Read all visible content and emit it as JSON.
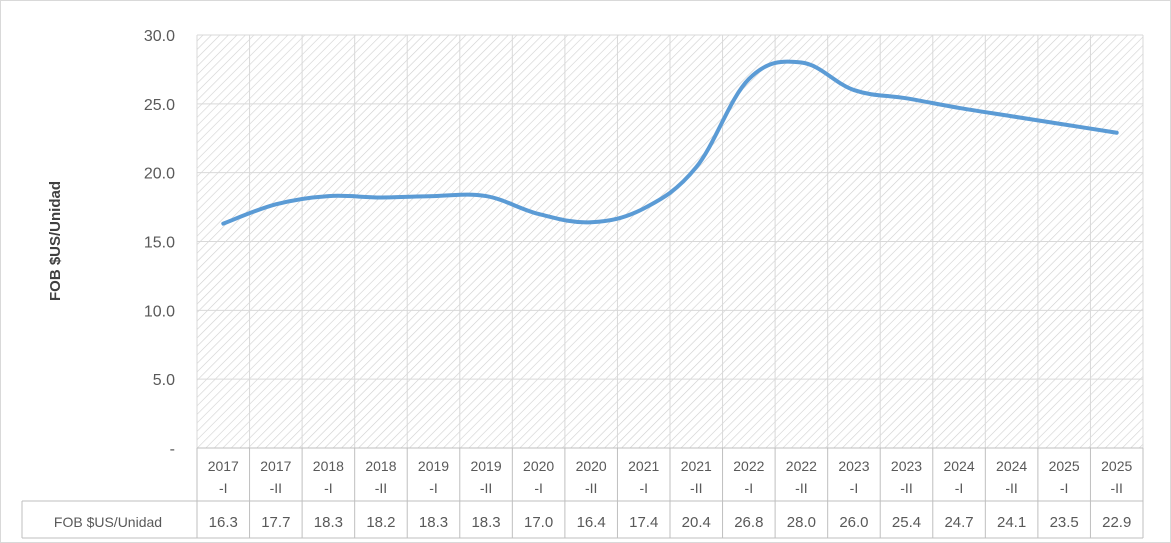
{
  "chart_data": {
    "type": "line",
    "title": "",
    "xlabel": "",
    "ylabel": "FOB $US/Unidad",
    "ylim": [
      0,
      30
    ],
    "yticks": [
      "-",
      "5.0",
      "10.0",
      "15.0",
      "20.0",
      "25.0",
      "30.0"
    ],
    "categories": [
      [
        "2017",
        "-I"
      ],
      [
        "2017",
        "-II"
      ],
      [
        "2018",
        "-I"
      ],
      [
        "2018",
        "-II"
      ],
      [
        "2019",
        "-I"
      ],
      [
        "2019",
        "-II"
      ],
      [
        "2020",
        "-I"
      ],
      [
        "2020",
        "-II"
      ],
      [
        "2021",
        "-I"
      ],
      [
        "2021",
        "-II"
      ],
      [
        "2022",
        "-I"
      ],
      [
        "2022",
        "-II"
      ],
      [
        "2023",
        "-I"
      ],
      [
        "2023",
        "-II"
      ],
      [
        "2024",
        "-I"
      ],
      [
        "2024",
        "-II"
      ],
      [
        "2025",
        "-I"
      ],
      [
        "2025",
        "-II"
      ]
    ],
    "series": [
      {
        "name": "FOB $US/Unidad",
        "color": "#5b9bd5",
        "values": [
          16.3,
          17.7,
          18.3,
          18.2,
          18.3,
          18.3,
          17.0,
          16.4,
          17.4,
          20.4,
          26.8,
          28.0,
          26.0,
          25.4,
          24.7,
          24.1,
          23.5,
          22.9
        ]
      }
    ],
    "table_values": [
      "16.3",
      "17.7",
      "18.3",
      "18.2",
      "18.3",
      "18.3",
      "17.0",
      "16.4",
      "17.4",
      "20.4",
      "26.8",
      "28.0",
      "26.0",
      "25.4",
      "24.7",
      "24.1",
      "23.5",
      "22.9"
    ],
    "grid": true,
    "legend": "data-table"
  }
}
